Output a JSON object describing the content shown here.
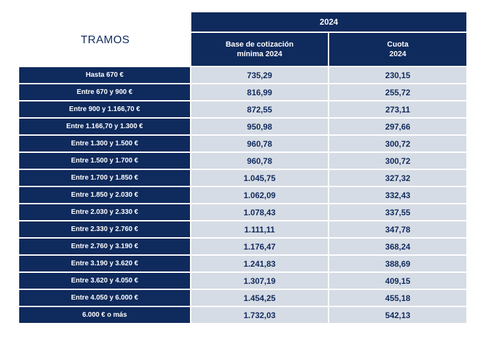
{
  "table": {
    "title_left": "TRAMOS",
    "year_header": "2024",
    "col1_header_line1": "Base de cotización",
    "col1_header_line2": "mínima 2024",
    "col2_header_line1": "Cuota",
    "col2_header_line2": "2024",
    "rows": [
      {
        "tramo": "Hasta 670 €",
        "base": "735,29",
        "cuota": "230,15"
      },
      {
        "tramo": "Entre 670 y 900 €",
        "base": "816,99",
        "cuota": "255,72"
      },
      {
        "tramo": "Entre 900 y 1.166,70 €",
        "base": "872,55",
        "cuota": "273,11"
      },
      {
        "tramo": "Entre 1.166,70 y 1.300 €",
        "base": "950,98",
        "cuota": "297,66"
      },
      {
        "tramo": "Entre 1.300 y 1.500 €",
        "base": "960,78",
        "cuota": "300,72"
      },
      {
        "tramo": "Entre 1.500 y 1.700 €",
        "base": "960,78",
        "cuota": "300,72"
      },
      {
        "tramo": "Entre 1.700 y 1.850 €",
        "base": "1.045,75",
        "cuota": "327,32"
      },
      {
        "tramo": "Entre 1.850 y 2.030 €",
        "base": "1.062,09",
        "cuota": "332,43"
      },
      {
        "tramo": "Entre 2.030 y 2.330 €",
        "base": "1.078,43",
        "cuota": "337,55"
      },
      {
        "tramo": "Entre 2.330 y 2.760 €",
        "base": "1.111,11",
        "cuota": "347,78"
      },
      {
        "tramo": "Entre 2.760 y 3.190 €",
        "base": "1.176,47",
        "cuota": "368,24"
      },
      {
        "tramo": "Entre 3.190 y 3.620 €",
        "base": "1.241,83",
        "cuota": "388,69"
      },
      {
        "tramo": "Entre 3.620 y 4.050 €",
        "base": "1.307,19",
        "cuota": "409,15"
      },
      {
        "tramo": "Entre 4.050 y 6.000 €",
        "base": "1.454,25",
        "cuota": "455,18"
      },
      {
        "tramo": "6.000 € o más",
        "base": "1.732,03",
        "cuota": "542,13"
      }
    ]
  },
  "colors": {
    "header_bg": "#0f2a5c",
    "cell_bg": "#d6dce5",
    "text_dark": "#0f2a5c"
  }
}
